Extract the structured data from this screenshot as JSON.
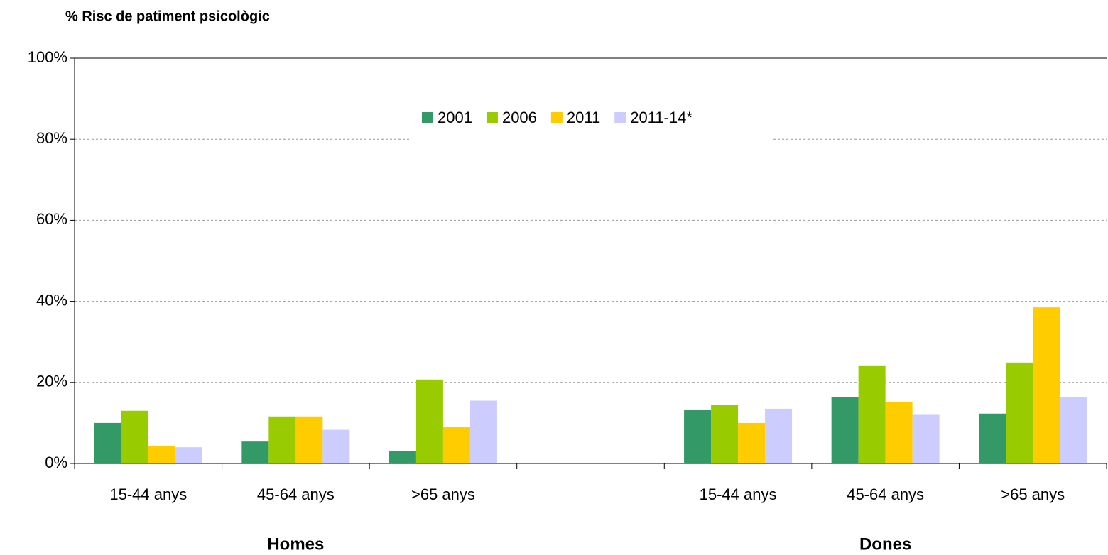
{
  "chart_data": {
    "type": "bar",
    "title": "% Risc de patiment psicològic",
    "categories": [
      "15-44 anys",
      "45-64 anys",
      ">65 anys",
      null,
      "15-44 anys",
      "45-64 anys",
      ">65 anys"
    ],
    "groups": [
      "Homes",
      "Dones"
    ],
    "series": [
      {
        "name": "2001",
        "color": "#339966",
        "values": [
          10,
          5.4,
          3,
          null,
          13.2,
          16.3,
          12.3
        ]
      },
      {
        "name": "2006",
        "color": "#99cc00",
        "values": [
          13,
          11.6,
          20.7,
          null,
          14.5,
          24.2,
          24.9
        ]
      },
      {
        "name": "2011",
        "color": "#ffcc00",
        "values": [
          4.4,
          11.6,
          9.1,
          null,
          10,
          15.2,
          38.5
        ]
      },
      {
        "name": "2011-14*",
        "color": "#ccccff",
        "values": [
          4,
          8.3,
          15.5,
          null,
          13.5,
          12,
          16.3
        ]
      }
    ],
    "ylim": [
      0,
      100
    ],
    "yticks": [
      {
        "value": 0,
        "label": "0%"
      },
      {
        "value": 20,
        "label": "20%"
      },
      {
        "value": 40,
        "label": "40%"
      },
      {
        "value": 60,
        "label": "60%"
      },
      {
        "value": 80,
        "label": "80%"
      },
      {
        "value": 100,
        "label": "100%"
      }
    ],
    "grid": true,
    "legend": "top"
  }
}
